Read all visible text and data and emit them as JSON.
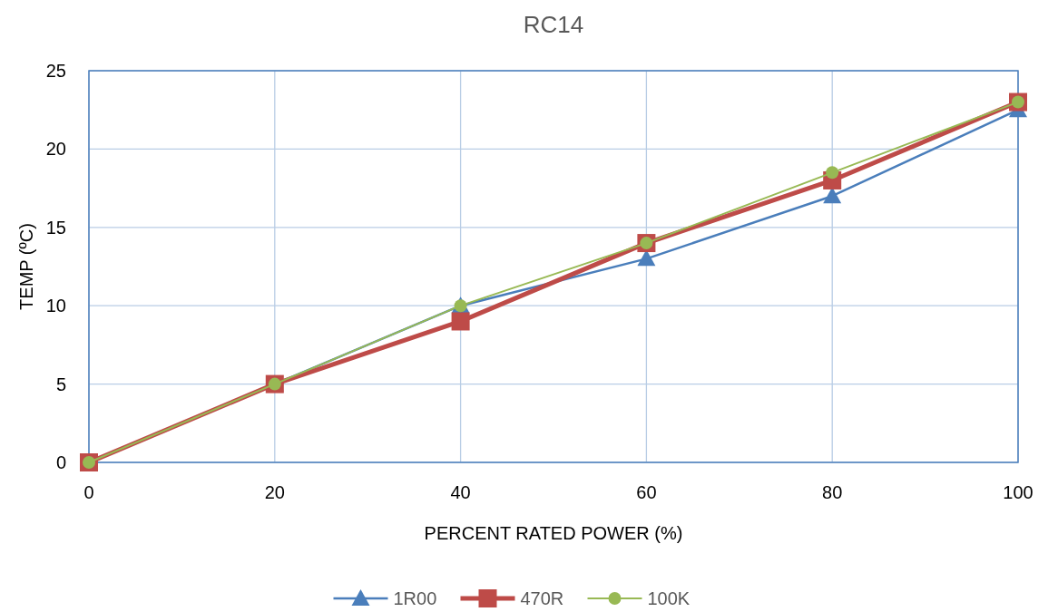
{
  "chart_data": {
    "type": "line",
    "title": "RC14",
    "xlabel": "PERCENT RATED POWER (%)",
    "ylabel": "TEMP (ºC)",
    "x": [
      0,
      20,
      40,
      60,
      80,
      100
    ],
    "xlim": [
      0,
      100
    ],
    "xticks": [
      0,
      20,
      40,
      60,
      80,
      100
    ],
    "ylim": [
      0,
      25
    ],
    "yticks": [
      0,
      5,
      10,
      15,
      20,
      25
    ],
    "grid": true,
    "legend": "bottom",
    "series": [
      {
        "name": "1R00",
        "color": "#4a7ebb",
        "values": [
          0,
          5,
          10,
          13,
          17,
          22.5
        ],
        "marker": "triangle"
      },
      {
        "name": "470R",
        "color": "#be4b48",
        "values": [
          0,
          5,
          9,
          14,
          18,
          23
        ],
        "marker": "square"
      },
      {
        "name": "100K",
        "color": "#98b954",
        "values": [
          0,
          5,
          10,
          14,
          18.5,
          23
        ],
        "marker": "circle"
      }
    ]
  }
}
